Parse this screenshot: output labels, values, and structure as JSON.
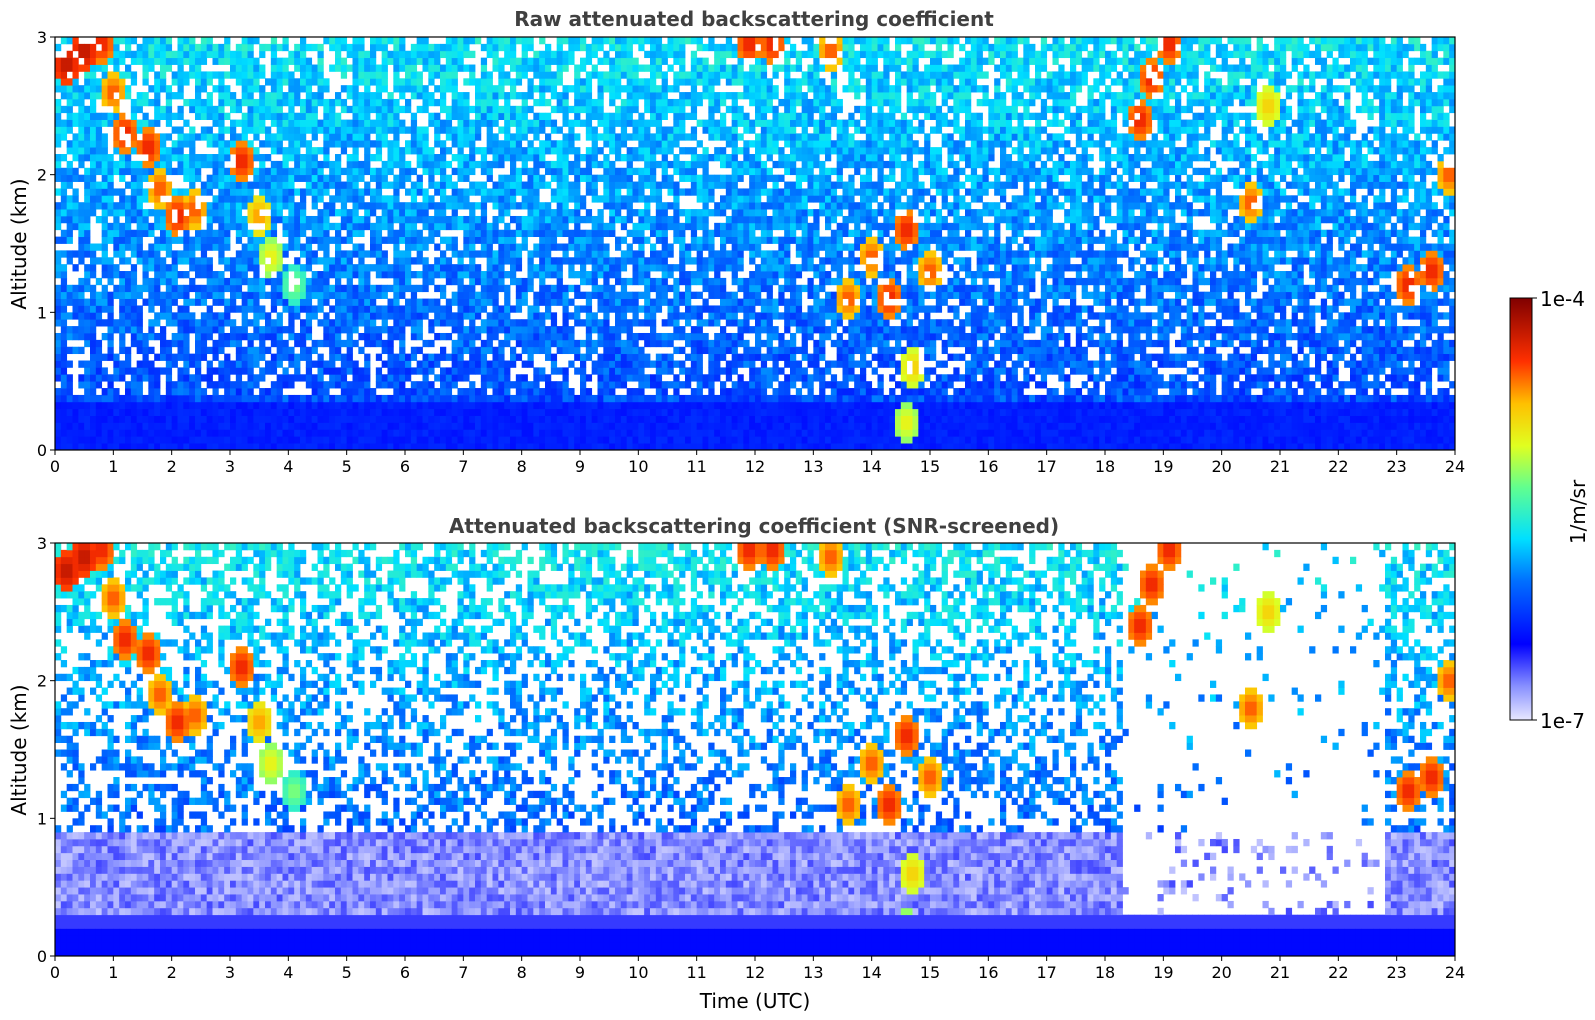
{
  "chart_data": [
    {
      "type": "heatmap",
      "title": "Raw attenuated backscattering coefficient",
      "xlabel": "",
      "ylabel": "Altitude (km)",
      "xlim": [
        0,
        24
      ],
      "ylim": [
        0,
        3
      ],
      "x_ticks": [
        "0",
        "1",
        "2",
        "3",
        "4",
        "5",
        "6",
        "7",
        "8",
        "9",
        "10",
        "11",
        "12",
        "13",
        "14",
        "15",
        "16",
        "17",
        "18",
        "19",
        "20",
        "21",
        "22",
        "23",
        "24"
      ],
      "y_ticks": [
        "0",
        "1",
        "2",
        "3"
      ],
      "screened": false
    },
    {
      "type": "heatmap",
      "title": "Attenuated backscattering coefficient (SNR-screened)",
      "xlabel": "Time (UTC)",
      "ylabel": "Altitude (km)",
      "xlim": [
        0,
        24
      ],
      "ylim": [
        0,
        3
      ],
      "x_ticks": [
        "0",
        "1",
        "2",
        "3",
        "4",
        "5",
        "6",
        "7",
        "8",
        "9",
        "10",
        "11",
        "12",
        "13",
        "14",
        "15",
        "16",
        "17",
        "18",
        "19",
        "20",
        "21",
        "22",
        "23",
        "24"
      ],
      "y_ticks": [
        "0",
        "1",
        "2",
        "3"
      ],
      "screened": true
    }
  ],
  "colorbar": {
    "label": "1/m/sr",
    "max_label": "1e-4",
    "min_label": "1e-7",
    "scale": "log",
    "range": [
      1e-07,
      0.0001
    ],
    "colormap": "jet"
  },
  "colors": {
    "title_text": "#404040",
    "axis_text": "#000000"
  }
}
